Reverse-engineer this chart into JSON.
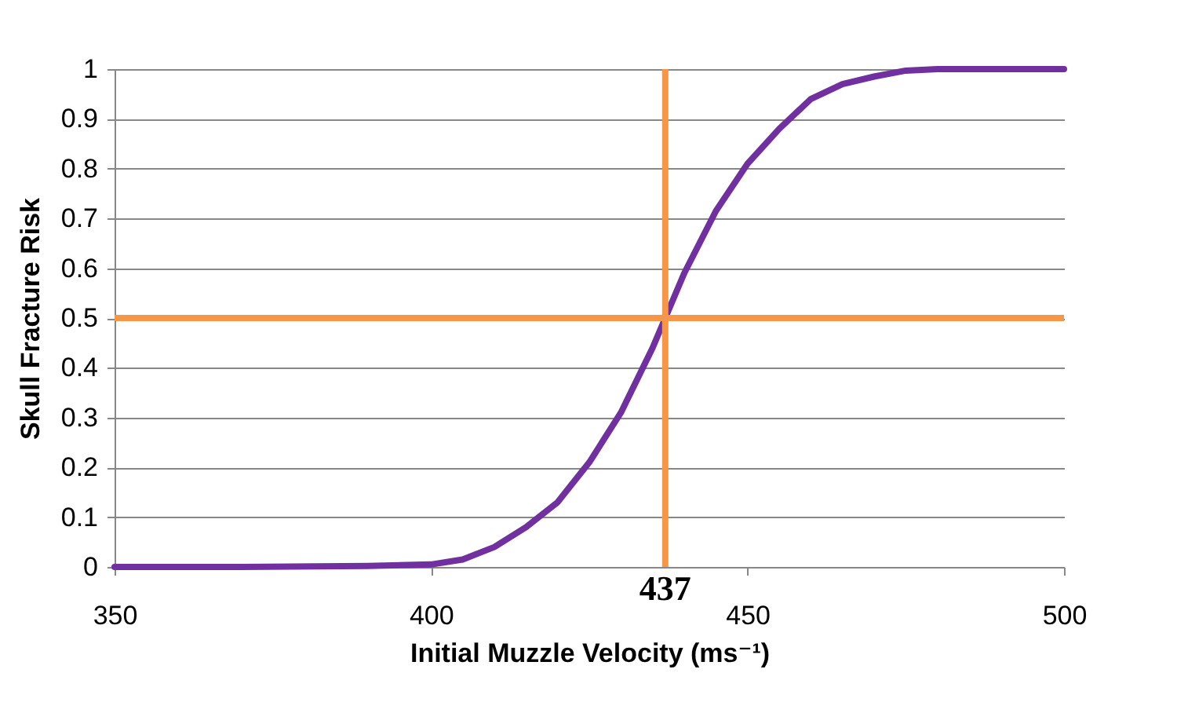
{
  "chart_data": {
    "type": "line",
    "xlabel": "Initial Muzzle Velocity (ms⁻¹)",
    "ylabel": "Skull Fracture Risk",
    "x": [
      350,
      370,
      390,
      400,
      405,
      410,
      415,
      420,
      425,
      430,
      435,
      437,
      440,
      445,
      450,
      455,
      460,
      465,
      470,
      475,
      480,
      490,
      500
    ],
    "series": [
      {
        "color": "#7030a0",
        "values": [
          0,
          0,
          0.002,
          0.005,
          0.015,
          0.04,
          0.08,
          0.13,
          0.21,
          0.31,
          0.44,
          0.5,
          0.59,
          0.715,
          0.81,
          0.88,
          0.94,
          0.97,
          0.985,
          0.997,
          1,
          1,
          1
        ]
      }
    ],
    "xlim": [
      350,
      500
    ],
    "xticks": [
      350,
      400,
      450,
      500
    ],
    "ylim": [
      0,
      1
    ],
    "yticks": [
      0,
      0.1,
      0.2,
      0.3,
      0.4,
      0.5,
      0.6,
      0.7,
      0.8,
      0.9,
      1
    ],
    "grid": "y",
    "marker": "none",
    "line_style": "solid",
    "ref_lines": [
      {
        "axis": "x",
        "value": 437,
        "label": "437",
        "color": "#f79646"
      },
      {
        "axis": "y",
        "value": 0.5,
        "color": "#f79646"
      }
    ]
  }
}
